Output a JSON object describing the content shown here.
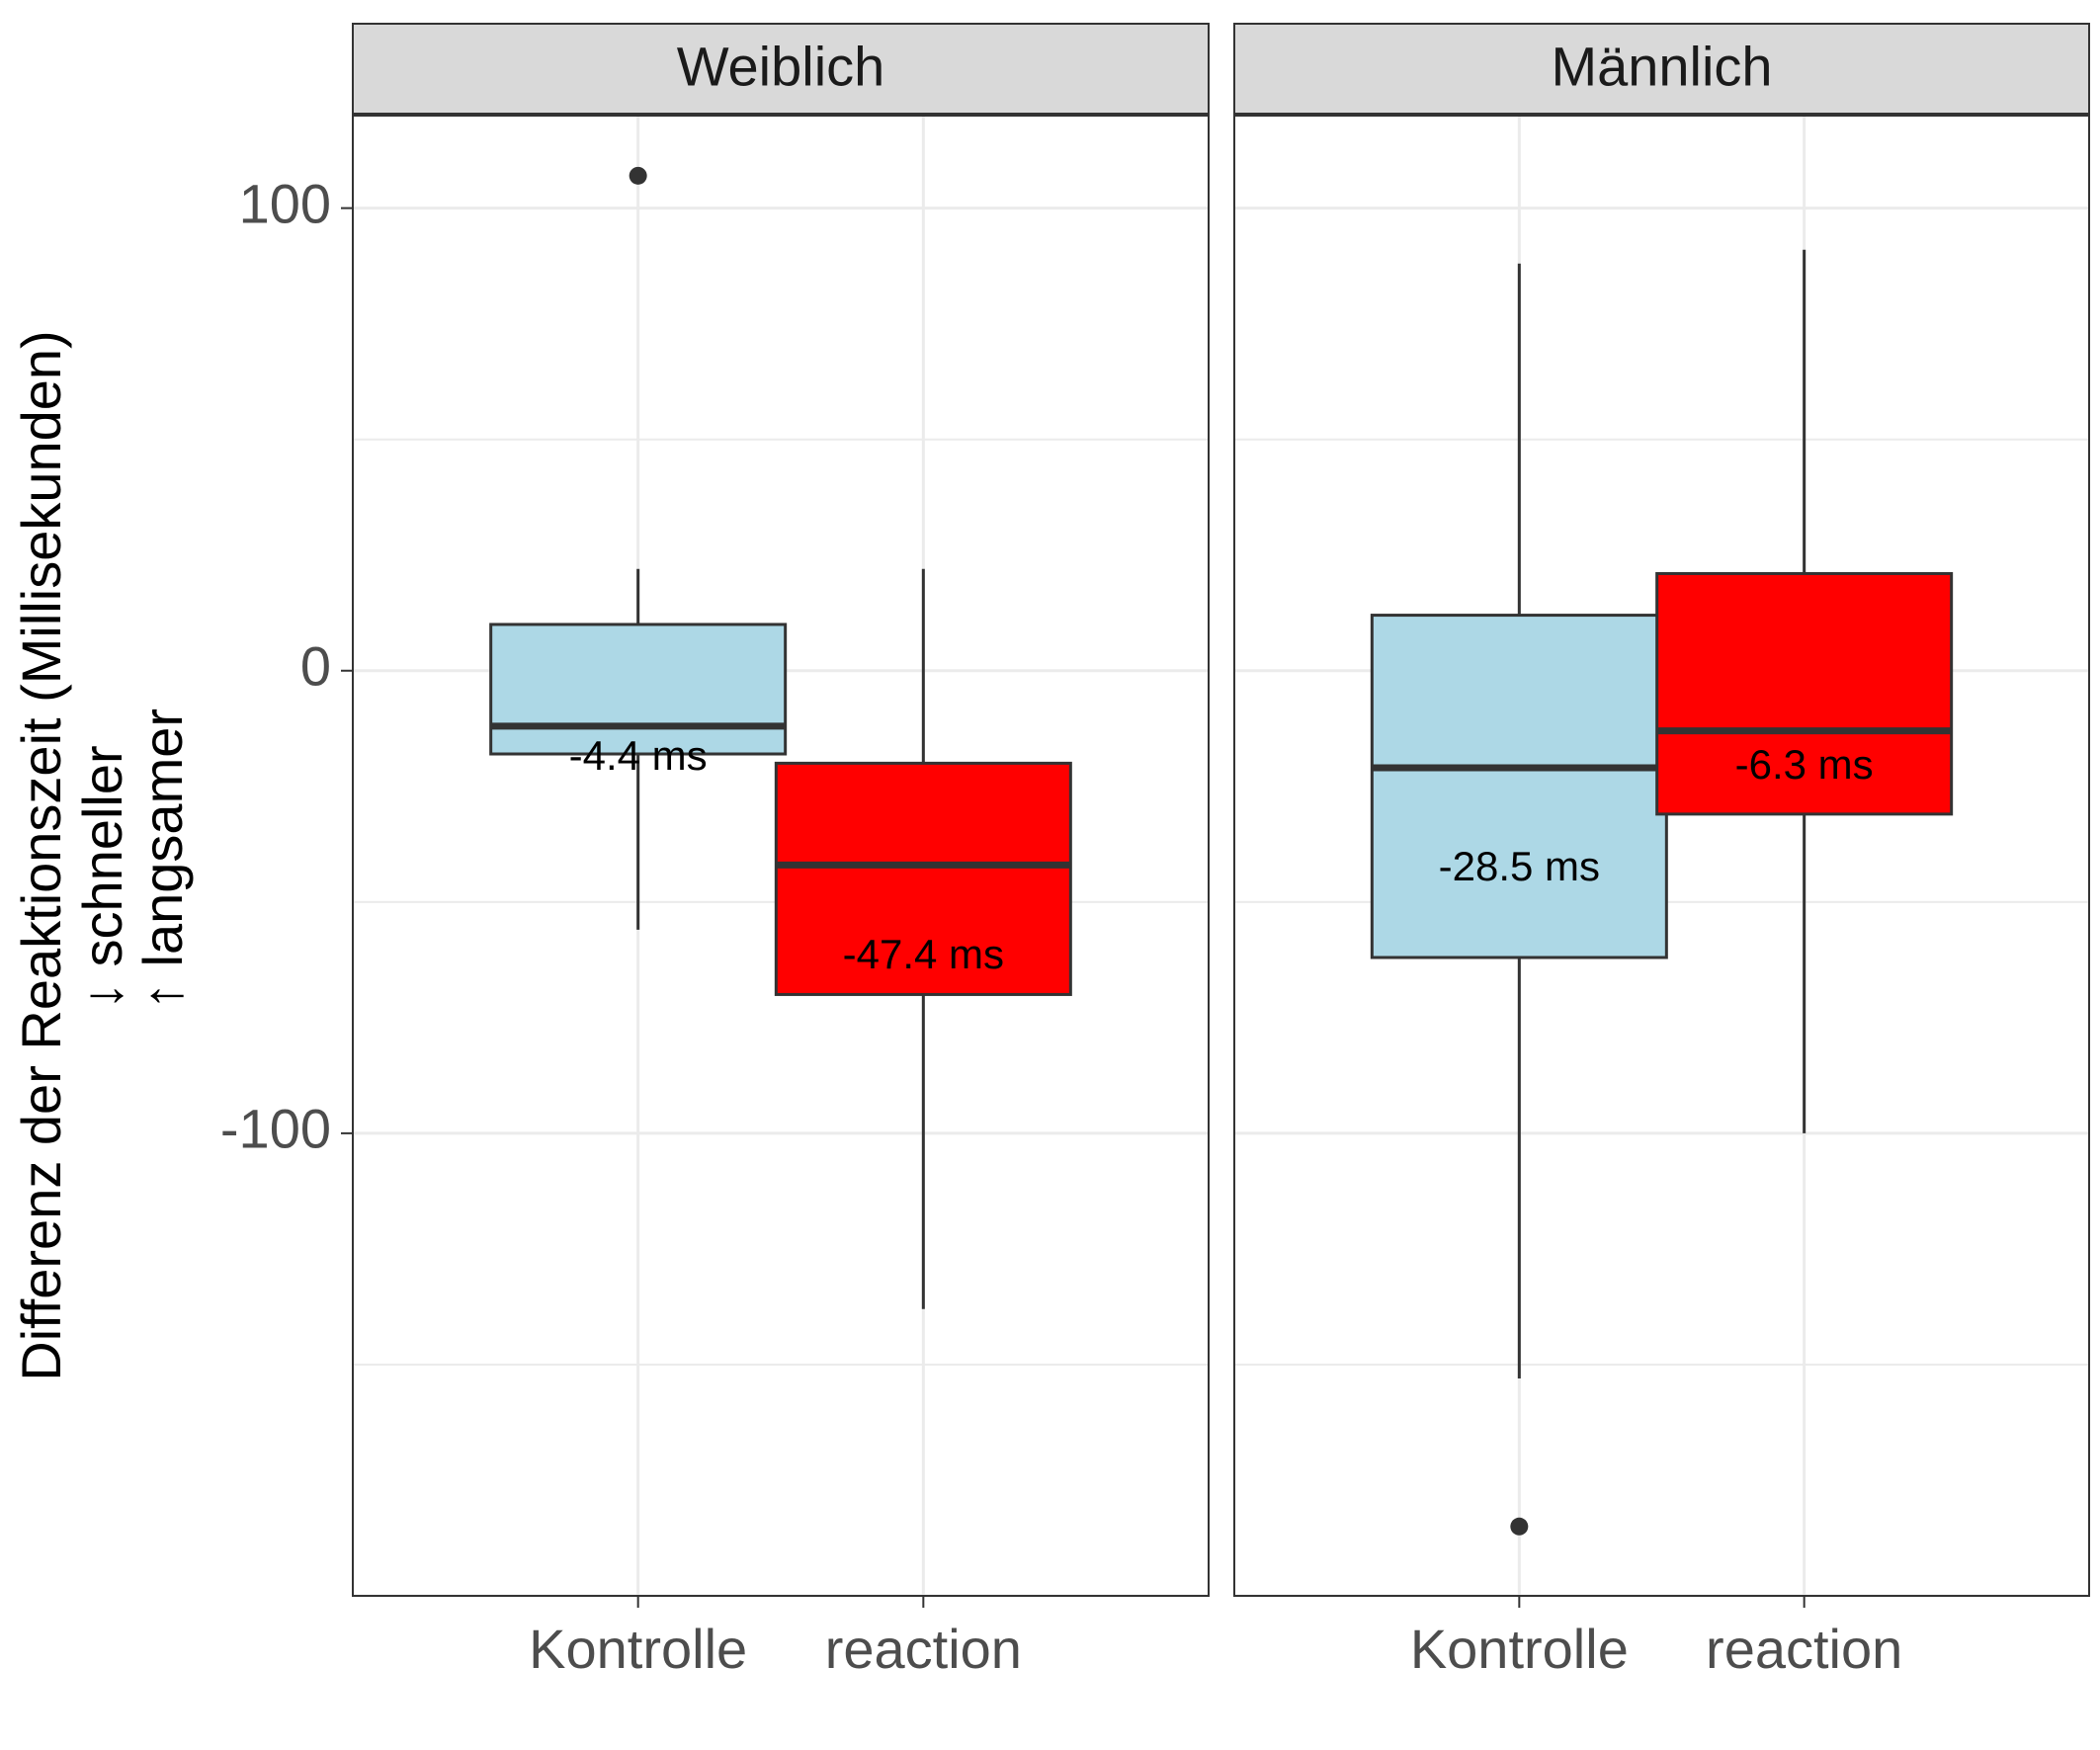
{
  "chart_data": {
    "type": "boxplot",
    "facets": [
      "Weiblich",
      "Männlich"
    ],
    "categories": [
      "Kontrolle",
      "reaction"
    ],
    "ylabel_lines": [
      "Differenz der Reaktionszeit (Millisekunden)",
      "↓  schneller",
      "↑ langsamer"
    ],
    "yticks": [
      100,
      0,
      -100
    ],
    "ylim": [
      -200,
      120
    ],
    "grid": true,
    "boxes": [
      {
        "facet": "Weiblich",
        "category": "Kontrolle",
        "color": "#ADD8E6",
        "whisker_low": -56,
        "q1": -18,
        "median": -12,
        "q3": 10,
        "whisker_high": 22,
        "outliers": [
          107
        ],
        "label": "-4.4 ms",
        "label_y": -19
      },
      {
        "facet": "Weiblich",
        "category": "reaction",
        "color": "#FF0000",
        "whisker_low": -138,
        "q1": -70,
        "median": -42,
        "q3": -20,
        "whisker_high": 22,
        "outliers": [],
        "label": "-47.4 ms",
        "label_y": -62
      },
      {
        "facet": "Männlich",
        "category": "Kontrolle",
        "color": "#ADD8E6",
        "whisker_low": -153,
        "q1": -62,
        "median": -21,
        "q3": 12,
        "whisker_high": 88,
        "outliers": [
          -185
        ],
        "label": "-28.5 ms",
        "label_y": -43
      },
      {
        "facet": "Männlich",
        "category": "reaction",
        "color": "#FF0000",
        "whisker_low": -100,
        "q1": -31,
        "median": -13,
        "q3": 21,
        "whisker_high": 91,
        "outliers": [],
        "label": "-6.3 ms",
        "label_y": -21
      }
    ]
  }
}
